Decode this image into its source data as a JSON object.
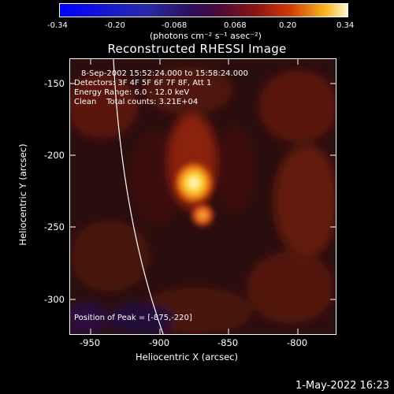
{
  "colorbar": {
    "ticks": [
      "-0.34",
      "-0.20",
      "-0.068",
      "0.068",
      "0.20",
      "0.34"
    ],
    "unit": "(photons cm⁻² s⁻¹ asec⁻²)"
  },
  "title": "Reconstructed RHESSI Image",
  "info": {
    "time_range": "8-Sep-2002 15:52:24.000 to 15:58:24.000",
    "detectors": "Detectors: 3F 4F 5F 6F 7F 8F, Att 1",
    "energy": "Energy Range: 6.0 - 12.0 keV",
    "clean": "Clean    Total counts: 3.21E+04",
    "peak": "Position of Peak = [-875,-220]"
  },
  "axes": {
    "xlabel": "Heliocentric X (arcsec)",
    "ylabel": "Heliocentric Y (arcsec)",
    "xticks": [
      "-950",
      "-900",
      "-850",
      "-800"
    ],
    "yticks": [
      "-150",
      "-200",
      "-250",
      "-300"
    ]
  },
  "timestamp": "1-May-2022 16:23"
}
